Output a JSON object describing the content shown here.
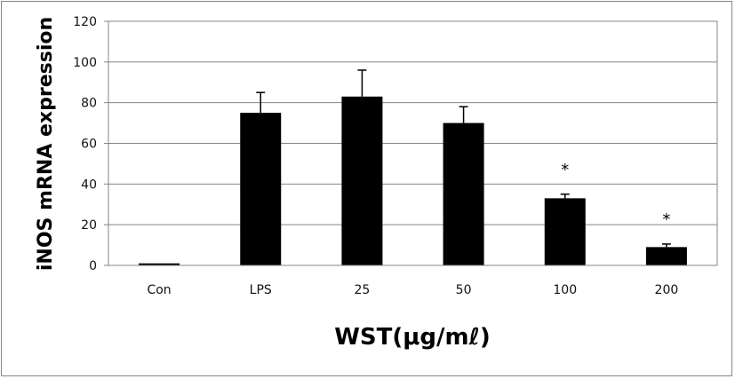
{
  "chart_data": {
    "type": "bar",
    "categories": [
      "Con",
      "LPS",
      "25",
      "50",
      "100",
      "200"
    ],
    "values": [
      1,
      75,
      83,
      70,
      33,
      9
    ],
    "error_upper": [
      0,
      10,
      13,
      8,
      2,
      1.5
    ],
    "annotations": [
      "",
      "",
      "",
      "",
      "*",
      "*"
    ],
    "ylabel": "iNOS mRNA expression",
    "xlabel": "WST(μg/mℓ)",
    "ylim": [
      0,
      120
    ],
    "yticks": [
      0,
      20,
      40,
      60,
      80,
      100,
      120
    ],
    "grid": true,
    "legend": "none",
    "colors": {
      "bar": "#000000",
      "grid": "#868686",
      "axis": "#868686"
    }
  }
}
